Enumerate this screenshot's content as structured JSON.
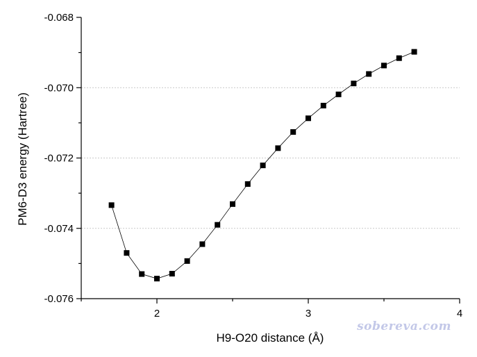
{
  "chart_data": {
    "type": "line",
    "xlabel": "H9-O20 distance (Å)",
    "ylabel": "PM6-D3 energy (Hartree)",
    "xlim": [
      1.5,
      4.0
    ],
    "ylim": [
      -0.076,
      -0.068
    ],
    "x_ticks": [
      2,
      3,
      4
    ],
    "y_ticks": [
      -0.076,
      -0.074,
      -0.072,
      -0.07,
      -0.068
    ],
    "x_tick_labels": [
      "2",
      "3",
      "4"
    ],
    "y_tick_labels": [
      "-0.076",
      "-0.074",
      "-0.072",
      "-0.070",
      "-0.068"
    ],
    "grid": "horizontal dotted",
    "marker": "square",
    "line_color": "#000000",
    "marker_color": "#000000",
    "grid_color": "#c8c8c8",
    "series": [
      {
        "x": [
          1.7,
          1.8,
          1.9,
          2.0,
          2.1,
          2.2,
          2.3,
          2.4,
          2.5,
          2.6,
          2.7,
          2.8,
          2.9,
          3.0,
          3.1,
          3.2,
          3.3,
          3.4,
          3.5,
          3.6,
          3.7
        ],
        "values": [
          -0.07334,
          -0.0747,
          -0.0753,
          -0.07543,
          -0.07529,
          -0.07493,
          -0.07445,
          -0.0739,
          -0.07331,
          -0.07274,
          -0.07221,
          -0.07172,
          -0.07126,
          -0.07087,
          -0.07051,
          -0.07019,
          -0.06988,
          -0.06961,
          -0.06937,
          -0.06916,
          -0.06898
        ]
      }
    ]
  },
  "watermark": "sobereva.com"
}
